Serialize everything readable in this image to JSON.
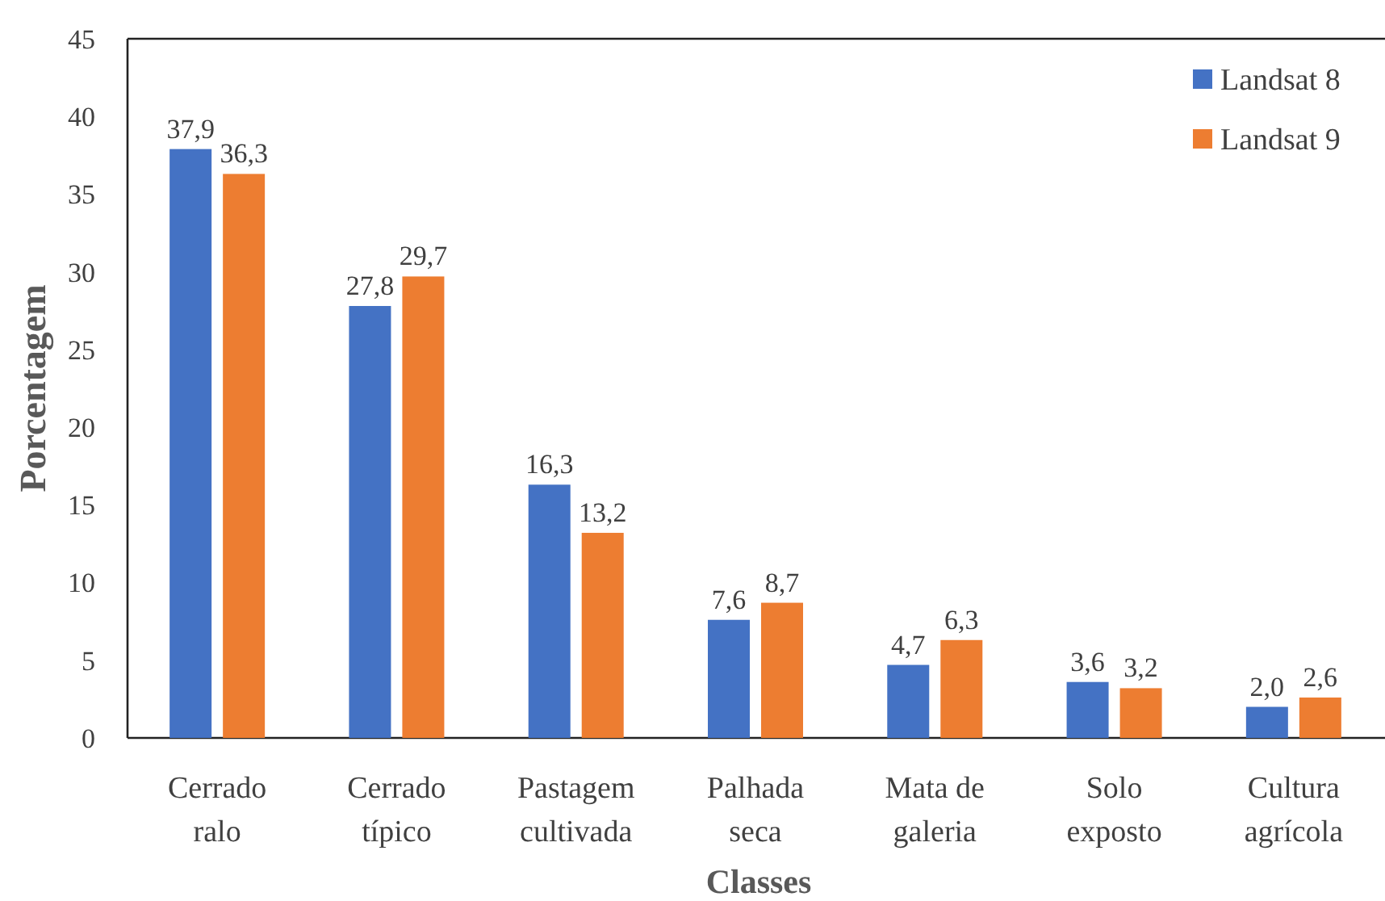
{
  "chart_data": {
    "type": "bar",
    "xlabel": "Classes",
    "ylabel": "Porcentagem",
    "categories": [
      "Cerrado\nralo",
      "Cerrado\ntípico",
      "Pastagem\ncultivada",
      "Palhada\nseca",
      "Mata de\ngaleria",
      "Solo\nexposto",
      "Cultura\nagrícola"
    ],
    "series": [
      {
        "name": "Landsat 8",
        "color": "#4472c4",
        "values": [
          37.9,
          27.8,
          16.3,
          7.6,
          4.7,
          3.6,
          2.0
        ],
        "value_labels": [
          "37,9",
          "27,8",
          "16,3",
          "7,6",
          "4,7",
          "3,6",
          "2,0"
        ]
      },
      {
        "name": "Landsat 9",
        "color": "#ed7d31",
        "values": [
          36.3,
          29.7,
          13.2,
          8.7,
          6.3,
          3.2,
          2.6
        ],
        "value_labels": [
          "36,3",
          "29,7",
          "13,2",
          "8,7",
          "6,3",
          "3,2",
          "2,6"
        ]
      }
    ],
    "ylim": [
      0,
      45
    ],
    "yticks": [
      0,
      5,
      10,
      15,
      20,
      25,
      30,
      35,
      40,
      45
    ],
    "legend": "top right"
  }
}
